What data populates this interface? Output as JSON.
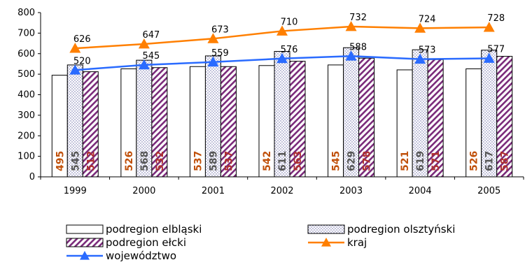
{
  "chart_data": {
    "type": "bar",
    "categories": [
      "1999",
      "2000",
      "2001",
      "2002",
      "2003",
      "2004",
      "2005"
    ],
    "ylim": [
      0,
      800
    ],
    "yticks": [
      "0",
      "100",
      "200",
      "300",
      "400",
      "500",
      "600",
      "700",
      "800"
    ],
    "grid": false,
    "legend_position": "bottom",
    "series": [
      {
        "name": "podregion elbląski",
        "type": "bar",
        "pattern": "white",
        "label_color": "#c0500a",
        "values": [
          495,
          526,
          537,
          542,
          545,
          521,
          526
        ]
      },
      {
        "name": "podregion olsztyński",
        "type": "bar",
        "pattern": "dots",
        "label_color": "#555555",
        "values": [
          545,
          568,
          589,
          611,
          629,
          619,
          617
        ]
      },
      {
        "name": "podregion ełcki",
        "type": "bar",
        "pattern": "hatch",
        "label_color": "#b03030",
        "values": [
          512,
          532,
          537,
          563,
          578,
          571,
          587
        ]
      },
      {
        "name": "kraj",
        "type": "line",
        "color": "#ff7f00",
        "marker": "triangle",
        "values": [
          626,
          647,
          673,
          710,
          732,
          724,
          728
        ]
      },
      {
        "name": "województwo",
        "type": "line",
        "color": "#2a6bff",
        "marker": "triangle",
        "values": [
          520,
          545,
          559,
          576,
          588,
          573,
          577
        ]
      }
    ]
  }
}
